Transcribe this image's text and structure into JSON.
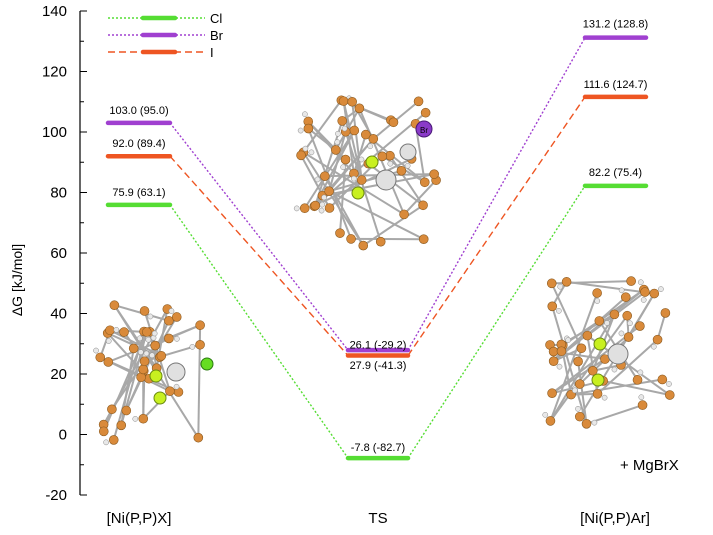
{
  "chart_data": {
    "type": "line",
    "ylabel": "ΔG [kJ/mol]",
    "ylim": [
      -20,
      140
    ],
    "yticks": [
      -20,
      0,
      20,
      40,
      60,
      80,
      100,
      120,
      140
    ],
    "categories": [
      "[Ni(P,P)X]",
      "TS",
      "[Ni(P,P)Ar]"
    ],
    "series": [
      {
        "name": "Cl",
        "color": "#55dd33",
        "style": "dotted",
        "values": [
          75.9,
          -7.8,
          82.2
        ],
        "labels": [
          "75.9 (63.1)",
          "-7.8 (-82.7)",
          "82.2 (75.4)"
        ]
      },
      {
        "name": "Br",
        "color": "#a040d0",
        "style": "dotted",
        "values": [
          103.0,
          27.9,
          131.2
        ],
        "labels": [
          "103.0 (95.0)",
          "27.9 (-41.3)",
          "131.2 (128.8)"
        ]
      },
      {
        "name": "I",
        "color": "#ee5522",
        "style": "dashed",
        "values": [
          92.0,
          26.1,
          111.6
        ],
        "labels": [
          "92.0 (89.4)",
          "26.1 (-29.2)",
          "111.6 (124.7)"
        ]
      }
    ],
    "annotations": [
      "+ MgBrX"
    ],
    "atom_label": "Br",
    "legend": "top-left"
  }
}
